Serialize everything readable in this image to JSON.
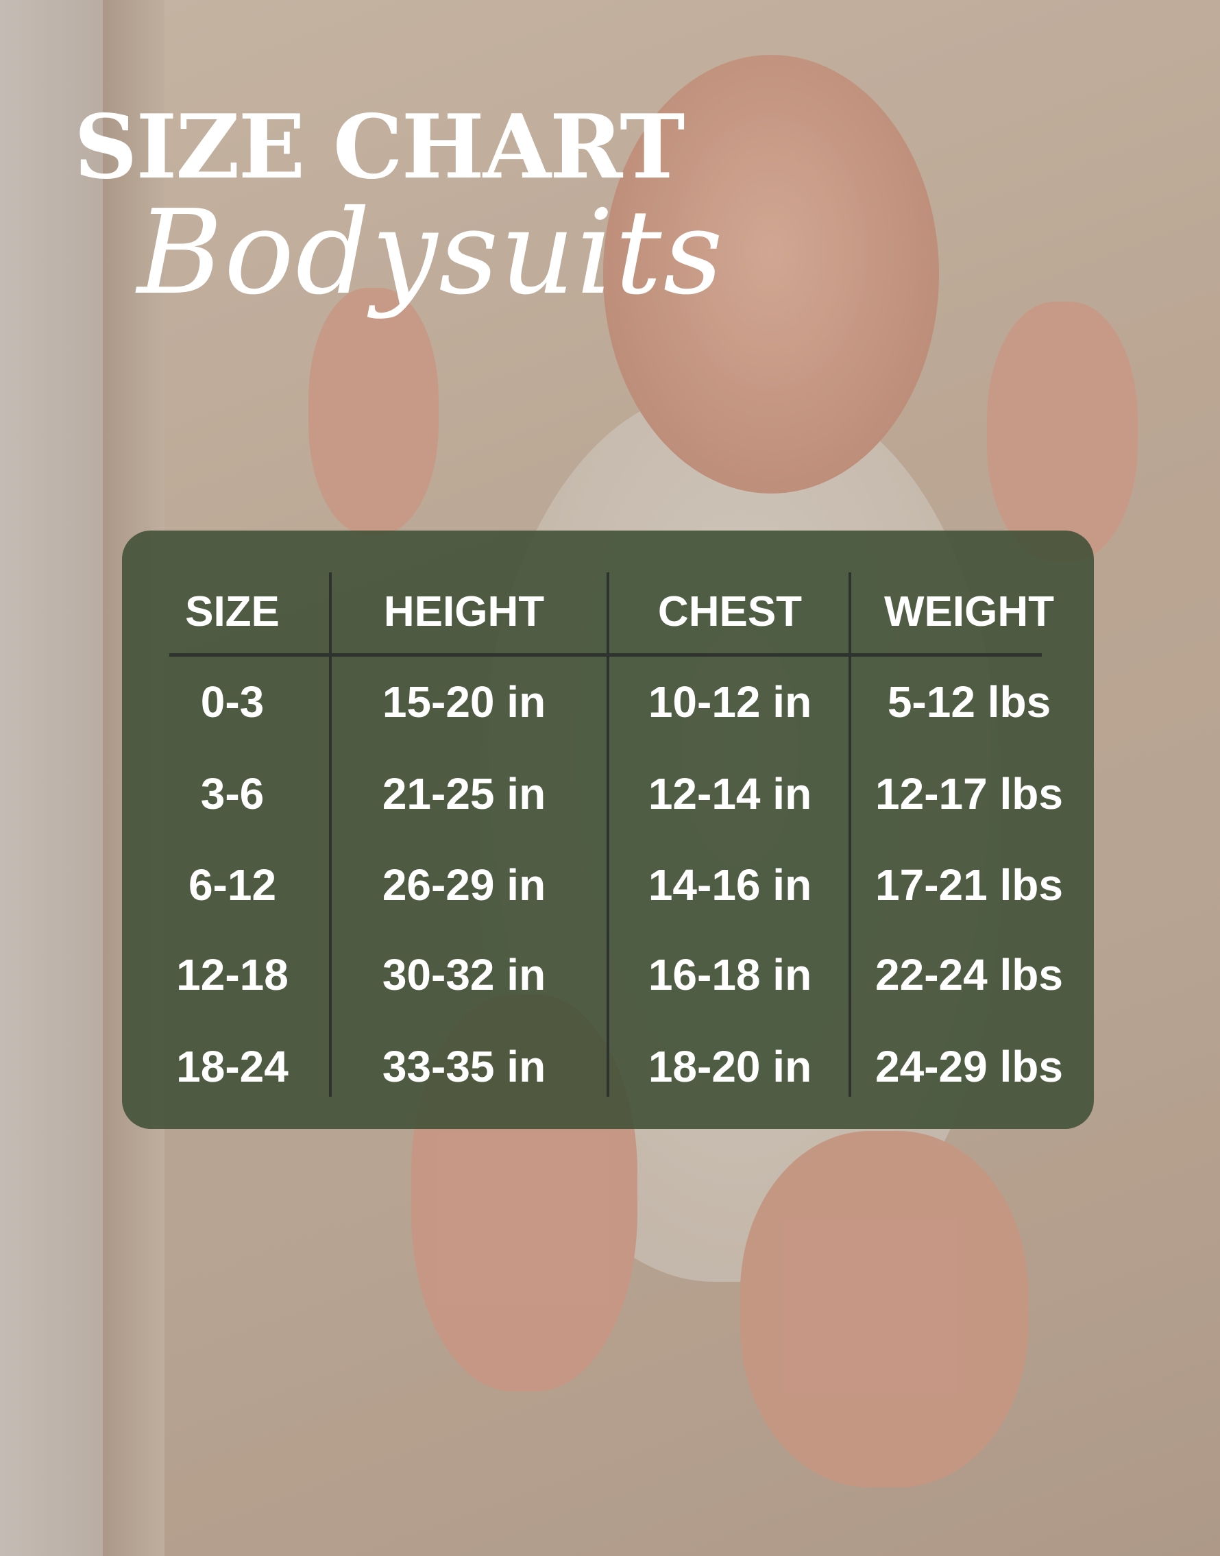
{
  "title": "SIZE CHART",
  "subtitle": "Bodysuits",
  "colors": {
    "table_background": "#425238",
    "text": "#ffffff",
    "divider": "#2f3330"
  },
  "chart_data": {
    "type": "table",
    "columns": [
      "SIZE",
      "HEIGHT",
      "CHEST",
      "WEIGHT"
    ],
    "rows": [
      [
        "0-3",
        "15-20 in",
        "10-12 in",
        "5-12 lbs"
      ],
      [
        "3-6",
        "21-25 in",
        "12-14 in",
        "12-17 lbs"
      ],
      [
        "6-12",
        "26-29 in",
        "14-16 in",
        "17-21 lbs"
      ],
      [
        "12-18",
        "30-32 in",
        "16-18 in",
        "22-24 lbs"
      ],
      [
        "18-24",
        "33-35 in",
        "18-20 in",
        "24-29 lbs"
      ]
    ]
  }
}
